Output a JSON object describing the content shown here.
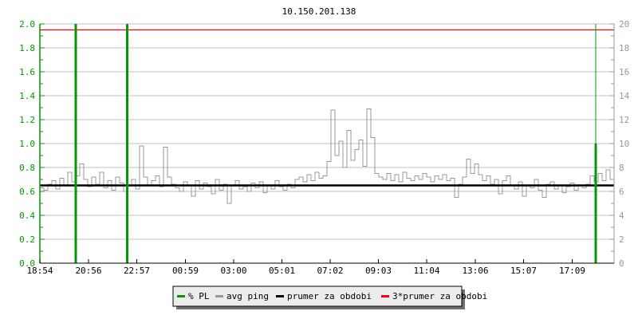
{
  "chart_data": {
    "type": "line",
    "title": "10.150.201.138",
    "x_start": "18:54",
    "x_span_hours": 24,
    "x_ticks": [
      "18:54",
      "20:56",
      "22:57",
      "00:59",
      "03:00",
      "05:01",
      "07:02",
      "09:03",
      "11:04",
      "13:06",
      "15:07",
      "17:09"
    ],
    "y_left": {
      "range": [
        0,
        2.0
      ],
      "ticks": [
        "0.0",
        "0.2",
        "0.4",
        "0.6",
        "0.8",
        "1.0",
        "1.2",
        "1.4",
        "1.6",
        "1.8",
        "2.0"
      ],
      "color": "#009900"
    },
    "y_right": {
      "range": [
        0,
        20
      ],
      "ticks": [
        "0",
        "2",
        "4",
        "6",
        "8",
        "10",
        "12",
        "14",
        "16",
        "18",
        "20"
      ],
      "color": "#999999"
    },
    "grid": true,
    "legend_placement": "bottom",
    "series": [
      {
        "name": "% PL",
        "color": "#009900",
        "axis": "left",
        "events": [
          {
            "time": "20:24",
            "value": 2.0
          },
          {
            "time": "22:33",
            "value": 2.0
          },
          {
            "time": "18:08",
            "value": 1.0
          }
        ]
      },
      {
        "name": "avg ping",
        "color": "#999999",
        "axis": "right",
        "values": [
          6.3,
          6.1,
          6.6,
          6.9,
          6.2,
          7.1,
          6.5,
          7.6,
          6.8,
          7.3,
          8.3,
          7.0,
          6.4,
          7.2,
          6.6,
          7.6,
          6.3,
          6.9,
          6.1,
          7.2,
          6.7,
          6.0,
          6.5,
          7.0,
          6.2,
          9.8,
          7.2,
          6.5,
          6.9,
          7.3,
          6.4,
          9.7,
          7.2,
          6.6,
          6.3,
          6.0,
          6.8,
          6.5,
          5.6,
          6.9,
          6.2,
          6.7,
          6.4,
          5.8,
          7.0,
          6.1,
          6.6,
          5.0,
          6.5,
          6.9,
          6.2,
          6.4,
          6.0,
          6.7,
          6.3,
          6.8,
          5.9,
          6.5,
          6.2,
          6.9,
          6.4,
          6.1,
          6.6,
          6.3,
          7.0,
          7.2,
          6.8,
          7.4,
          6.9,
          7.6,
          7.1,
          7.3,
          8.5,
          12.8,
          9.0,
          10.2,
          8.0,
          11.1,
          8.6,
          9.5,
          10.3,
          8.1,
          12.9,
          10.5,
          7.5,
          7.2,
          7.0,
          7.5,
          6.9,
          7.4,
          6.8,
          7.6,
          7.1,
          6.9,
          7.3,
          7.0,
          7.5,
          7.2,
          6.8,
          7.3,
          7.0,
          7.4,
          6.9,
          7.1,
          5.5,
          6.6,
          7.2,
          8.7,
          7.5,
          8.3,
          7.4,
          6.9,
          7.3,
          6.6,
          7.0,
          5.8,
          6.9,
          7.3,
          6.5,
          6.2,
          6.8,
          5.6,
          6.5,
          6.3,
          7.0,
          6.1,
          5.5,
          6.6,
          6.8,
          6.2,
          6.5,
          5.9,
          6.4,
          6.7,
          6.1,
          6.5,
          6.3,
          6.6,
          7.3,
          6.8,
          7.5,
          6.9,
          7.8,
          7.0
        ]
      },
      {
        "name": "prumer za obdobi",
        "color": "#000000",
        "axis": "left",
        "value": 0.65
      },
      {
        "name": "3*prumer za obdobi",
        "color": "#ff0000",
        "axis": "left",
        "value": 1.95
      }
    ]
  }
}
